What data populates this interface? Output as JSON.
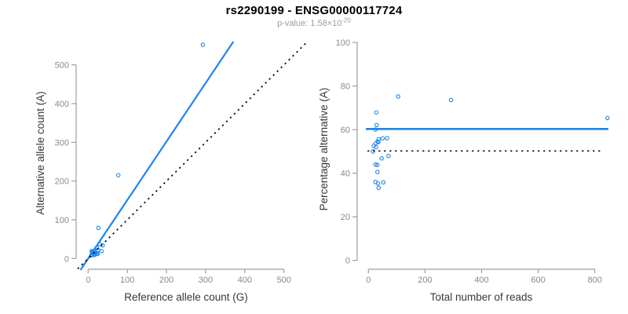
{
  "header": {
    "title": "rs2290199 - ENSG00000117724",
    "p_value_label": "p-value:",
    "p_value_mantissa": "1.58×10",
    "p_value_exponent": "-20"
  },
  "colors": {
    "accent_blue": "#1C86EE",
    "dotted_black": "#000000",
    "axis_line_gray": "#9e9e9e",
    "tick_label_gray": "#8a8a8a",
    "axis_title_gray": "#383838",
    "subtitle_gray": "#9c9c9c"
  },
  "chart_data": [
    {
      "type": "scatter",
      "panel": "left",
      "xlabel": "Reference allele count (G)",
      "ylabel": "Alternative allele count (A)",
      "xticks": [
        0,
        100,
        200,
        300,
        400,
        500
      ],
      "yticks": [
        0,
        100,
        200,
        300,
        400,
        500
      ],
      "xlim": [
        -27,
        577
      ],
      "ylim": [
        -30,
        560
      ],
      "grid": false,
      "marker": "open-circle",
      "points": [
        [
          293,
          552
        ],
        [
          77,
          215
        ],
        [
          26,
          79
        ],
        [
          9,
          19
        ],
        [
          11,
          18
        ],
        [
          10,
          15
        ],
        [
          16,
          20
        ],
        [
          22,
          28
        ],
        [
          29,
          37
        ],
        [
          15,
          18
        ],
        [
          16,
          19
        ],
        [
          12,
          14
        ],
        [
          9,
          10
        ],
        [
          8,
          8
        ],
        [
          13,
          14
        ],
        [
          37,
          34
        ],
        [
          25,
          22
        ],
        [
          14,
          11
        ],
        [
          18,
          14
        ],
        [
          19,
          13
        ],
        [
          16,
          9
        ],
        [
          22,
          12
        ],
        [
          34,
          19
        ],
        [
          24,
          12
        ]
      ],
      "lines": [
        {
          "name": "fit-line",
          "style": "solid",
          "color": "#1C86EE",
          "slope": 1.51,
          "intercept": 0
        },
        {
          "name": "identity-line",
          "style": "dotted",
          "color": "#000000",
          "slope": 1,
          "intercept": 0
        }
      ]
    },
    {
      "type": "scatter",
      "panel": "right",
      "xlabel": "Total number of reads",
      "ylabel": "Percentage alternative (A)",
      "xticks": [
        0,
        200,
        400,
        600,
        800
      ],
      "yticks": [
        0,
        20,
        40,
        60,
        80,
        100
      ],
      "xlim": [
        -10,
        848
      ],
      "ylim": [
        0,
        100
      ],
      "grid": false,
      "marker": "open-circle",
      "points": [
        [
          845,
          65.3
        ],
        [
          292,
          73.6
        ],
        [
          105,
          75.2
        ],
        [
          28,
          67.9
        ],
        [
          29,
          62.1
        ],
        [
          25,
          60.0
        ],
        [
          36,
          55.6
        ],
        [
          50,
          56.0
        ],
        [
          66,
          56.1
        ],
        [
          33,
          54.5
        ],
        [
          35,
          54.3
        ],
        [
          26,
          53.8
        ],
        [
          19,
          52.6
        ],
        [
          16,
          50.0
        ],
        [
          27,
          51.9
        ],
        [
          71,
          47.9
        ],
        [
          47,
          46.8
        ],
        [
          25,
          44.0
        ],
        [
          32,
          43.8
        ],
        [
          32,
          40.6
        ],
        [
          25,
          36.0
        ],
        [
          34,
          35.3
        ],
        [
          53,
          35.8
        ],
        [
          36,
          33.3
        ]
      ],
      "lines": [
        {
          "name": "mean-percentage-line",
          "style": "solid",
          "color": "#1C86EE",
          "y": 60.3,
          "xspan": [
            -9,
            848
          ]
        },
        {
          "name": "expected-percentage-line",
          "style": "dotted",
          "color": "#000000",
          "y": 50.2,
          "xspan": [
            -3,
            825
          ]
        }
      ]
    }
  ]
}
